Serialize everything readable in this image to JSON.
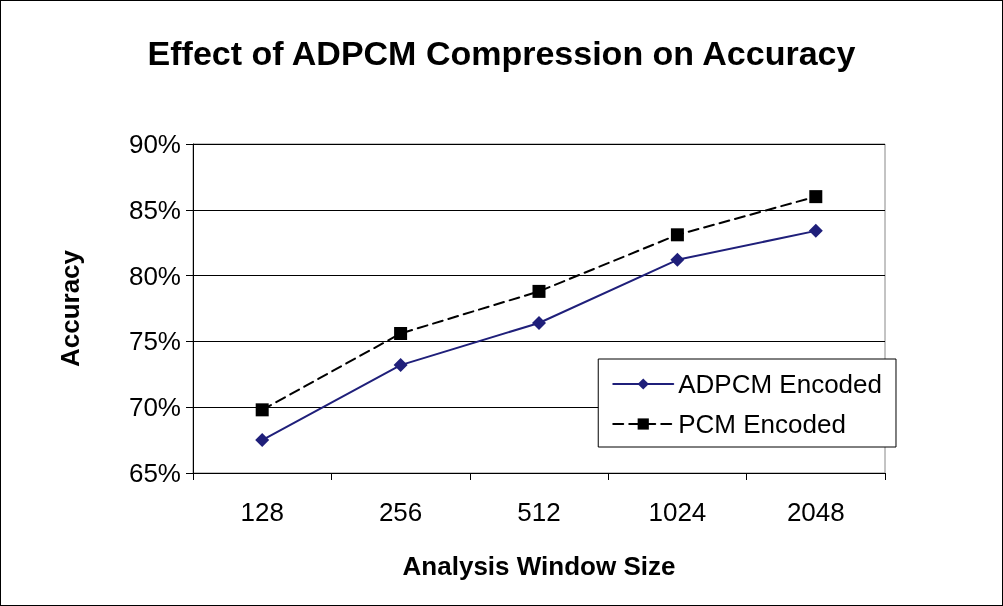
{
  "chart_data": {
    "type": "line",
    "title": "Effect of ADPCM Compression on Accuracy",
    "xlabel": "Analysis Window Size",
    "ylabel": "Accuracy",
    "categories": [
      "128",
      "256",
      "512",
      "1024",
      "2048"
    ],
    "series": [
      {
        "name": "ADPCM Encoded",
        "color": "#1f1f7a",
        "marker": "diamond",
        "line_style": "solid",
        "values": [
          67.5,
          73.2,
          76.4,
          81.2,
          83.4
        ]
      },
      {
        "name": "PCM Encoded",
        "color": "#000000",
        "marker": "square",
        "line_style": "dashed",
        "values": [
          69.8,
          75.6,
          78.8,
          83.1,
          86.0
        ]
      }
    ],
    "ylim": [
      65,
      90
    ],
    "yticks": [
      {
        "value": 65,
        "label": "65%"
      },
      {
        "value": 70,
        "label": "70%"
      },
      {
        "value": 75,
        "label": "75%"
      },
      {
        "value": 80,
        "label": "80%"
      },
      {
        "value": 85,
        "label": "85%"
      },
      {
        "value": 90,
        "label": "90%"
      }
    ],
    "grid": "y",
    "legend": "bottom right"
  }
}
